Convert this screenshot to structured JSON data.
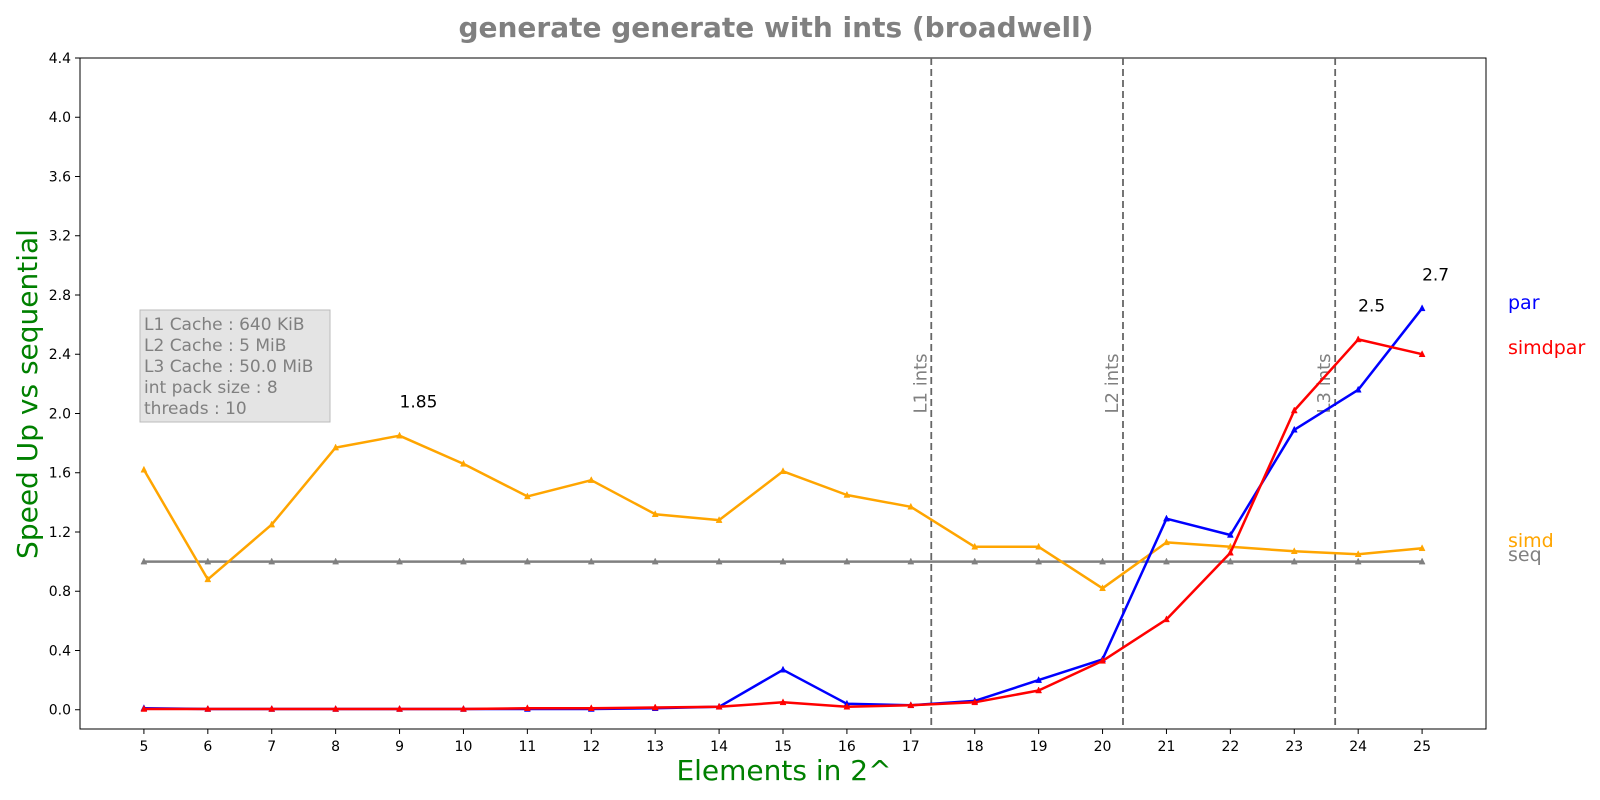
{
  "chart_data": {
    "type": "line",
    "title": "generate generate with ints  (broadwell)",
    "xlabel": "Elements in 2^",
    "ylabel": "Speed Up vs sequential",
    "x": [
      5,
      6,
      7,
      8,
      9,
      10,
      11,
      12,
      13,
      14,
      15,
      16,
      17,
      18,
      19,
      20,
      21,
      22,
      23,
      24,
      25
    ],
    "xlim": [
      4,
      26
    ],
    "ylim": [
      -0.13,
      4.4
    ],
    "yticks": [
      0.0,
      0.4,
      0.8,
      1.2,
      1.6,
      2.0,
      2.4,
      2.8,
      3.2,
      3.6,
      4.0,
      4.4
    ],
    "ytick_labels": [
      "0.0",
      "0.4",
      "0.8",
      "1.2",
      "1.6",
      "2.0",
      "2.4",
      "2.8",
      "3.2",
      "3.6",
      "4.0",
      "4.4"
    ],
    "grid": false,
    "series": [
      {
        "name": "seq",
        "color": "#808080",
        "values": [
          1,
          1,
          1,
          1,
          1,
          1,
          1,
          1,
          1,
          1,
          1,
          1,
          1,
          1,
          1,
          1,
          1,
          1,
          1,
          1,
          1
        ]
      },
      {
        "name": "simd",
        "color": "#FFA500",
        "values": [
          1.62,
          0.88,
          1.25,
          1.77,
          1.85,
          1.66,
          1.44,
          1.55,
          1.32,
          1.28,
          1.61,
          1.45,
          1.37,
          1.1,
          1.1,
          0.82,
          1.13,
          1.1,
          1.07,
          1.05,
          1.09
        ]
      },
      {
        "name": "par",
        "color": "#0000FF",
        "values": [
          0.01,
          0.005,
          0.005,
          0.005,
          0.005,
          0.005,
          0.005,
          0.005,
          0.01,
          0.02,
          0.27,
          0.04,
          0.03,
          0.06,
          0.2,
          0.34,
          1.29,
          1.18,
          1.89,
          2.16,
          2.71
        ]
      },
      {
        "name": "simdpar",
        "color": "#FF0000",
        "values": [
          0.005,
          0.005,
          0.005,
          0.005,
          0.005,
          0.005,
          0.01,
          0.01,
          0.015,
          0.02,
          0.05,
          0.02,
          0.03,
          0.05,
          0.13,
          0.33,
          0.61,
          1.06,
          2.02,
          2.5,
          2.4
        ]
      }
    ],
    "cache_lines": [
      {
        "x": 17.32,
        "label": "L1 ints"
      },
      {
        "x": 20.32,
        "label": "L2 ints"
      },
      {
        "x": 23.64,
        "label": "L3 ints"
      }
    ],
    "annotations": [
      {
        "text": "1.85",
        "x": 9,
        "y": 1.85
      },
      {
        "text": "2.5",
        "x": 24,
        "y": 2.5
      },
      {
        "text": "2.7",
        "x": 25,
        "y": 2.71
      }
    ],
    "info_box": [
      "L1 Cache : 640 KiB",
      "L2 Cache : 5 MiB",
      "L3 Cache : 50.0 MiB",
      "int pack size : 8",
      "threads : 10"
    ],
    "legend": {
      "placement": "right, next to each line end"
    }
  }
}
